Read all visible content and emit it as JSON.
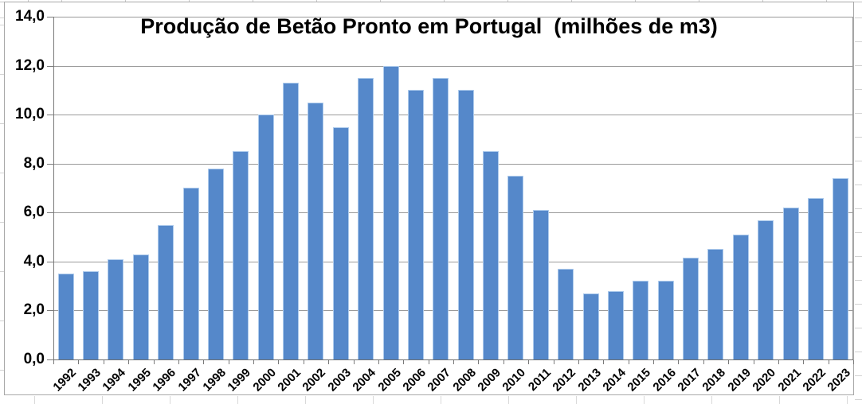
{
  "chart_data": {
    "type": "bar",
    "title": "Produção de Betão Pronto em Portugal  (milhões de m3)",
    "categories": [
      "1992",
      "1993",
      "1994",
      "1995",
      "1996",
      "1997",
      "1998",
      "1999",
      "2000",
      "2001",
      "2002",
      "2003",
      "2004",
      "2005",
      "2006",
      "2007",
      "2008",
      "2009",
      "2010",
      "2011",
      "2012",
      "2013",
      "2014",
      "2015",
      "2016",
      "2017",
      "2018",
      "2019",
      "2020",
      "2021",
      "2022",
      "2023"
    ],
    "values": [
      3.5,
      3.6,
      4.1,
      4.3,
      5.5,
      7.0,
      7.8,
      8.5,
      10.0,
      11.3,
      10.5,
      9.5,
      11.5,
      12.0,
      11.0,
      11.5,
      11.0,
      8.5,
      7.5,
      6.1,
      3.7,
      2.7,
      2.8,
      3.2,
      3.2,
      4.15,
      4.5,
      5.1,
      5.7,
      6.2,
      6.6,
      7.4
    ],
    "xlabel": "",
    "ylabel": "",
    "ylim": [
      0,
      14
    ],
    "ytick_interval": 2,
    "ytick_labels": [
      "0,0",
      "2,0",
      "4,0",
      "6,0",
      "8,0",
      "10,0",
      "12,0",
      "14,0"
    ],
    "decimal_separator": ",",
    "grid": true,
    "legend": null,
    "bar_color": "#5588CA",
    "bar_border_color": "#AECBEC",
    "gridline_color": "#9A9A9A",
    "axis_color": "#7A7A7A",
    "text_color": "#000000"
  }
}
